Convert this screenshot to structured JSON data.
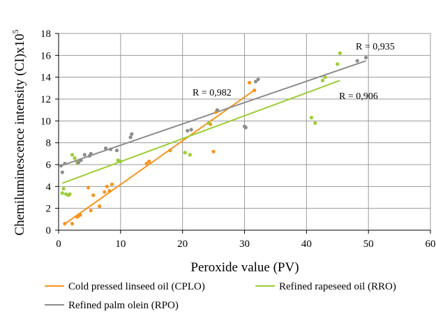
{
  "chart_data": {
    "type": "scatter",
    "xlabel": "Peroxide value (PV)",
    "ylabel_main": "Chemiluminescence intensity (CI)x10",
    "ylabel_exp": "5",
    "xlim": [
      0,
      60
    ],
    "ylim": [
      0,
      18
    ],
    "xticks": [
      0,
      10,
      20,
      30,
      40,
      50,
      60
    ],
    "yticks": [
      0,
      2,
      4,
      6,
      8,
      10,
      12,
      14,
      16,
      18
    ],
    "grid": true,
    "legend_position": "bottom",
    "series": [
      {
        "name": "Cold pressed linseed oil (CPLO)",
        "color": "#f7941d",
        "points": [
          [
            1.0,
            0.6
          ],
          [
            2.2,
            0.6
          ],
          [
            3.0,
            1.2
          ],
          [
            3.2,
            1.3
          ],
          [
            3.5,
            1.4
          ],
          [
            4.8,
            3.9
          ],
          [
            5.2,
            1.8
          ],
          [
            5.6,
            3.2
          ],
          [
            6.6,
            2.2
          ],
          [
            7.4,
            3.5
          ],
          [
            7.8,
            4.0
          ],
          [
            8.2,
            3.6
          ],
          [
            8.6,
            4.2
          ],
          [
            14.2,
            6.1
          ],
          [
            14.6,
            6.3
          ],
          [
            18.0,
            7.3
          ],
          [
            24.5,
            9.7
          ],
          [
            25.0,
            7.2
          ],
          [
            25.4,
            10.8
          ],
          [
            30.8,
            13.5
          ],
          [
            31.6,
            12.8
          ]
        ],
        "trend": [
          [
            0.8,
            0.5
          ],
          [
            31.8,
            12.9
          ]
        ],
        "r_label": "R = 0,982"
      },
      {
        "name": "Refined rapeseed oil (RRO)",
        "color": "#9acd32",
        "points": [
          [
            0.6,
            3.4
          ],
          [
            0.8,
            3.8
          ],
          [
            1.2,
            3.3
          ],
          [
            1.6,
            3.2
          ],
          [
            1.8,
            3.3
          ],
          [
            2.2,
            6.9
          ],
          [
            2.6,
            6.6
          ],
          [
            3.0,
            6.2
          ],
          [
            9.6,
            6.4
          ],
          [
            10.0,
            6.3
          ],
          [
            20.4,
            7.1
          ],
          [
            21.2,
            6.9
          ],
          [
            24.2,
            9.8
          ],
          [
            40.8,
            10.3
          ],
          [
            41.4,
            9.8
          ],
          [
            42.6,
            13.7
          ],
          [
            43.0,
            14.0
          ],
          [
            45.0,
            15.2
          ],
          [
            45.4,
            16.2
          ]
        ],
        "trend": [
          [
            0.6,
            4.3
          ],
          [
            45.4,
            13.7
          ]
        ],
        "r_label": "R = 0,906"
      },
      {
        "name": "Refined palm olein (RPO)",
        "color": "#8c8c8c",
        "points": [
          [
            0.4,
            5.9
          ],
          [
            0.6,
            5.3
          ],
          [
            1.0,
            6.1
          ],
          [
            3.2,
            6.2
          ],
          [
            3.6,
            6.4
          ],
          [
            4.2,
            6.9
          ],
          [
            5.0,
            6.8
          ],
          [
            5.2,
            7.0
          ],
          [
            7.6,
            7.5
          ],
          [
            8.4,
            7.4
          ],
          [
            9.4,
            7.3
          ],
          [
            11.6,
            8.5
          ],
          [
            11.8,
            8.8
          ],
          [
            20.8,
            9.1
          ],
          [
            21.4,
            9.2
          ],
          [
            25.6,
            11.0
          ],
          [
            30.0,
            9.5
          ],
          [
            30.2,
            9.4
          ],
          [
            31.8,
            13.6
          ],
          [
            32.2,
            13.8
          ],
          [
            48.2,
            15.5
          ],
          [
            49.6,
            15.8
          ]
        ],
        "trend": [
          [
            0.4,
            5.9
          ],
          [
            49.6,
            15.5
          ]
        ],
        "r_label": "R = 0,935"
      }
    ]
  }
}
